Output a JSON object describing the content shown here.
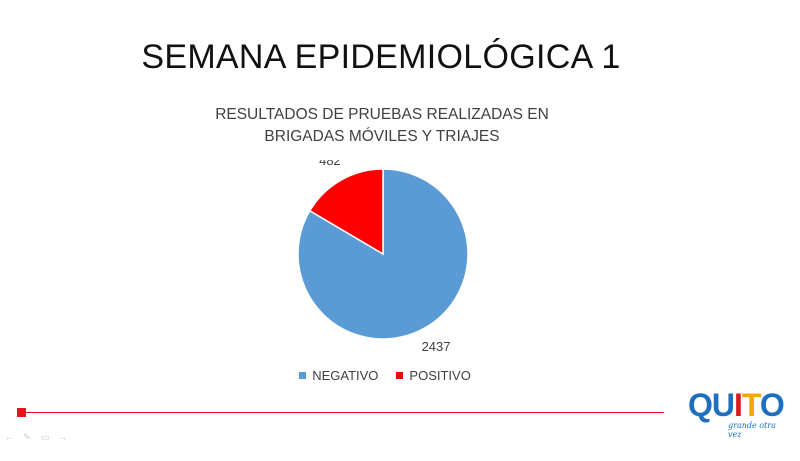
{
  "slide": {
    "title": "SEMANA EPIDEMIOLÓGICA 1"
  },
  "chart_data": {
    "type": "pie",
    "title_lines": [
      "RESULTADOS DE PRUEBAS REALIZADAS EN",
      "BRIGADAS MÓVILES Y TRIAJES"
    ],
    "categories": [
      "NEGATIVO",
      "POSITIVO"
    ],
    "values": [
      2437,
      482
    ],
    "data_labels": [
      "2437",
      "482"
    ],
    "colors": [
      "#5b9bd5",
      "#ff0000"
    ],
    "legend_position": "bottom"
  },
  "logo": {
    "letters": [
      "QU",
      "I",
      "T",
      "O"
    ],
    "tagline": "grande otra vez"
  },
  "colors": {
    "accent": "#e2161d"
  },
  "nav_controls": [
    "←",
    "✎",
    "▭",
    "→"
  ]
}
